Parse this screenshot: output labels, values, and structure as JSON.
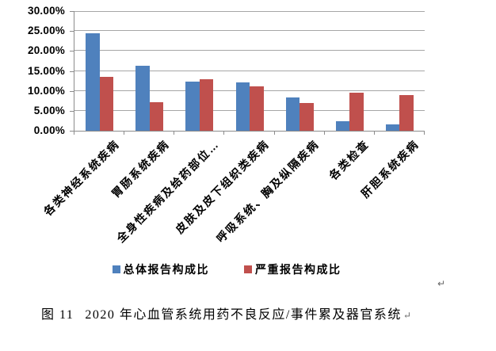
{
  "page": {
    "background": "#ffffff"
  },
  "chart_data": {
    "type": "bar",
    "title": "",
    "categories": [
      "各类神经系统疾病",
      "胃肠系统疾病",
      "全身性疾病及给药部位…",
      "皮肤及皮下组织类疾病",
      "呼吸系统、胸及纵隔疾病",
      "各类检查",
      "肝胆系统疾病"
    ],
    "series": [
      {
        "name": "总体报告构成比",
        "color": "#4F81BD",
        "values": [
          24.4,
          16.4,
          12.3,
          12.1,
          8.3,
          2.4,
          1.6
        ]
      },
      {
        "name": "严重报告构成比",
        "color": "#C0504D",
        "values": [
          13.6,
          7.1,
          13.0,
          11.1,
          7.0,
          9.5,
          8.9
        ]
      }
    ],
    "xlabel": "",
    "ylabel": "",
    "ylim": [
      0,
      30
    ],
    "y_tick_labels": [
      "0.00%",
      "5.00%",
      "10.00%",
      "15.00%",
      "20.00%",
      "25.00%",
      "30.00%"
    ],
    "grid": true,
    "legend_position": "bottom",
    "colors": {
      "grid": "#a6a6a6",
      "axis": "#8c8c8c",
      "text": "#000000"
    }
  },
  "caption": {
    "figure_label": "图 11",
    "text": "2020 年心血管系统用药不良反应/事件累及器官系统"
  },
  "marks": {
    "paragraph_mark": "↵"
  }
}
